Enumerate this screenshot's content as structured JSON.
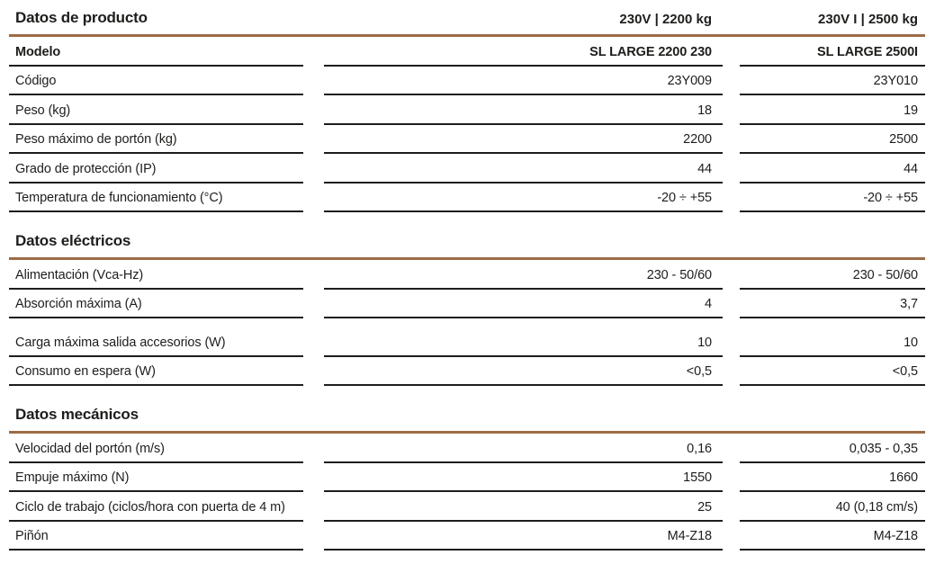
{
  "page": {
    "accent_color": "#9c6b45",
    "text_color": "#1d1d1b",
    "background_color": "#ffffff"
  },
  "sections": [
    {
      "title": "Datos de producto",
      "col1_header": "230V | 2200 kg",
      "col2_header": "230V I | 2500 kg",
      "rows": [
        {
          "label": "Modelo",
          "v1": "SL LARGE 2200 230",
          "v2": "SL LARGE 2500I",
          "bold": true
        },
        {
          "label": "Código",
          "v1": "23Y009",
          "v2": "23Y010"
        },
        {
          "label": "Peso (kg)",
          "v1": "18",
          "v2": "19"
        },
        {
          "label": "Peso máximo de portón (kg)",
          "v1": "2200",
          "v2": "2500"
        },
        {
          "label": "Grado de protección (IP)",
          "v1": "44",
          "v2": "44"
        },
        {
          "label": "Temperatura de funcionamiento (°C)",
          "v1": "-20 ÷ +55",
          "v2": "-20 ÷ +55"
        }
      ]
    },
    {
      "title": "Datos eléctricos",
      "col1_header": "",
      "col2_header": "",
      "rows": [
        {
          "label": "Alimentación (Vca-Hz)",
          "v1": "230 - 50/60",
          "v2": "230 - 50/60"
        },
        {
          "label": "Absorción máxima (A)",
          "v1": "4",
          "v2": "3,7"
        },
        {
          "label": "Carga máxima salida accesorios (W)",
          "v1": "10",
          "v2": "10",
          "extra_gap": true
        },
        {
          "label": "Consumo en espera (W)",
          "v1": "<0,5",
          "v2": "<0,5"
        }
      ]
    },
    {
      "title": "Datos mecánicos",
      "col1_header": "",
      "col2_header": "",
      "rows": [
        {
          "label": "Velocidad del portón (m/s)",
          "v1": "0,16",
          "v2": "0,035 - 0,35"
        },
        {
          "label": "Empuje máximo (N)",
          "v1": "1550",
          "v2": "1660"
        },
        {
          "label": "Ciclo de trabajo (ciclos/hora con puerta de 4 m)",
          "v1": "25",
          "v2": "40 (0,18 cm/s)"
        },
        {
          "label": "Piñón",
          "v1": "M4-Z18",
          "v2": "M4-Z18"
        }
      ]
    }
  ]
}
